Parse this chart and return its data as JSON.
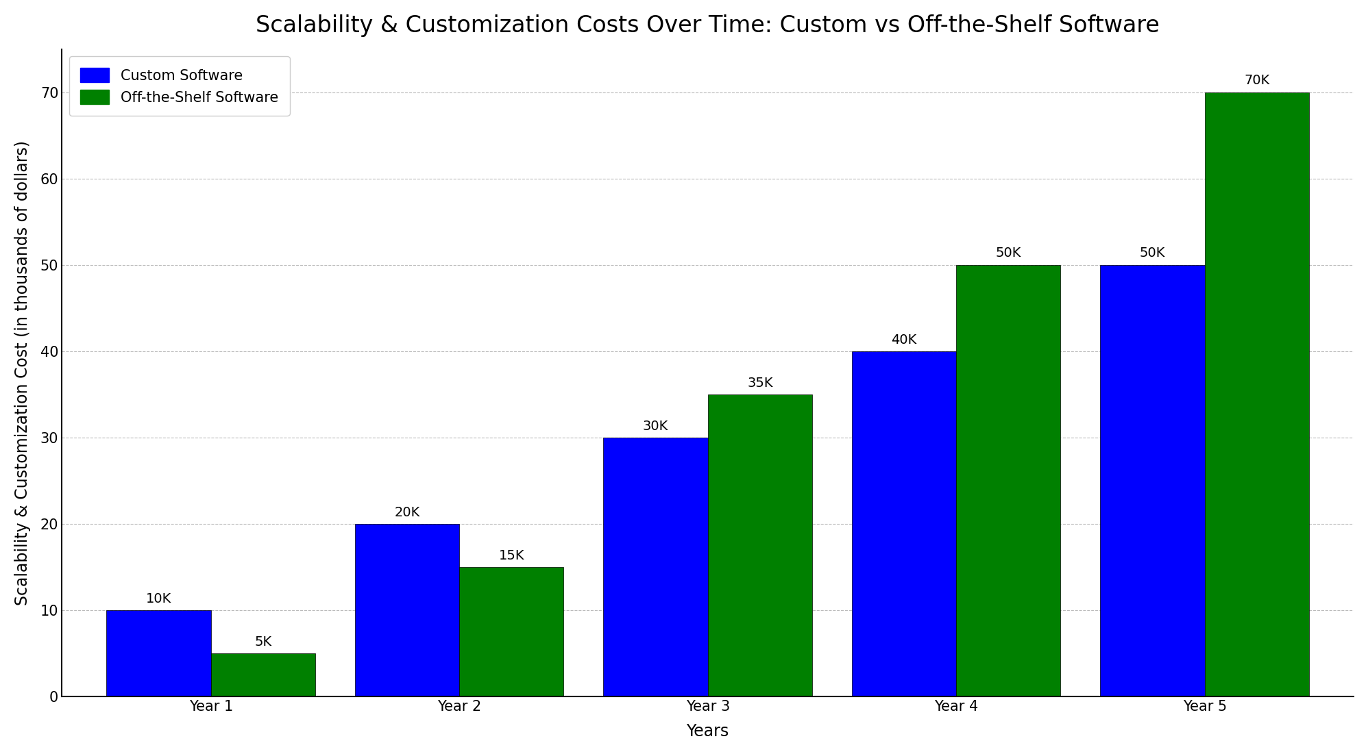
{
  "title": "Scalability & Customization Costs Over Time: Custom vs Off-the-Shelf Software",
  "xlabel": "Years",
  "ylabel": "Scalability & Customization Cost (in thousands of dollars)",
  "categories": [
    "Year 1",
    "Year 2",
    "Year 3",
    "Year 4",
    "Year 5"
  ],
  "custom_values": [
    10,
    20,
    30,
    40,
    50
  ],
  "offshelf_values": [
    5,
    15,
    35,
    50,
    70
  ],
  "custom_labels": [
    "10K",
    "20K",
    "30K",
    "40K",
    "50K"
  ],
  "offshelf_labels": [
    "5K",
    "15K",
    "35K",
    "50K",
    "70K"
  ],
  "custom_color": "#0000ff",
  "offshelf_color": "#008000",
  "background_color": "#ffffff",
  "bar_width": 0.42,
  "ylim": [
    0,
    75
  ],
  "yticks": [
    0,
    10,
    20,
    30,
    40,
    50,
    60,
    70
  ],
  "title_fontsize": 24,
  "axis_label_fontsize": 17,
  "tick_fontsize": 15,
  "legend_fontsize": 15,
  "bar_label_fontsize": 14,
  "grid_color": "#aaaaaa",
  "grid_linestyle": "--",
  "grid_alpha": 0.8
}
